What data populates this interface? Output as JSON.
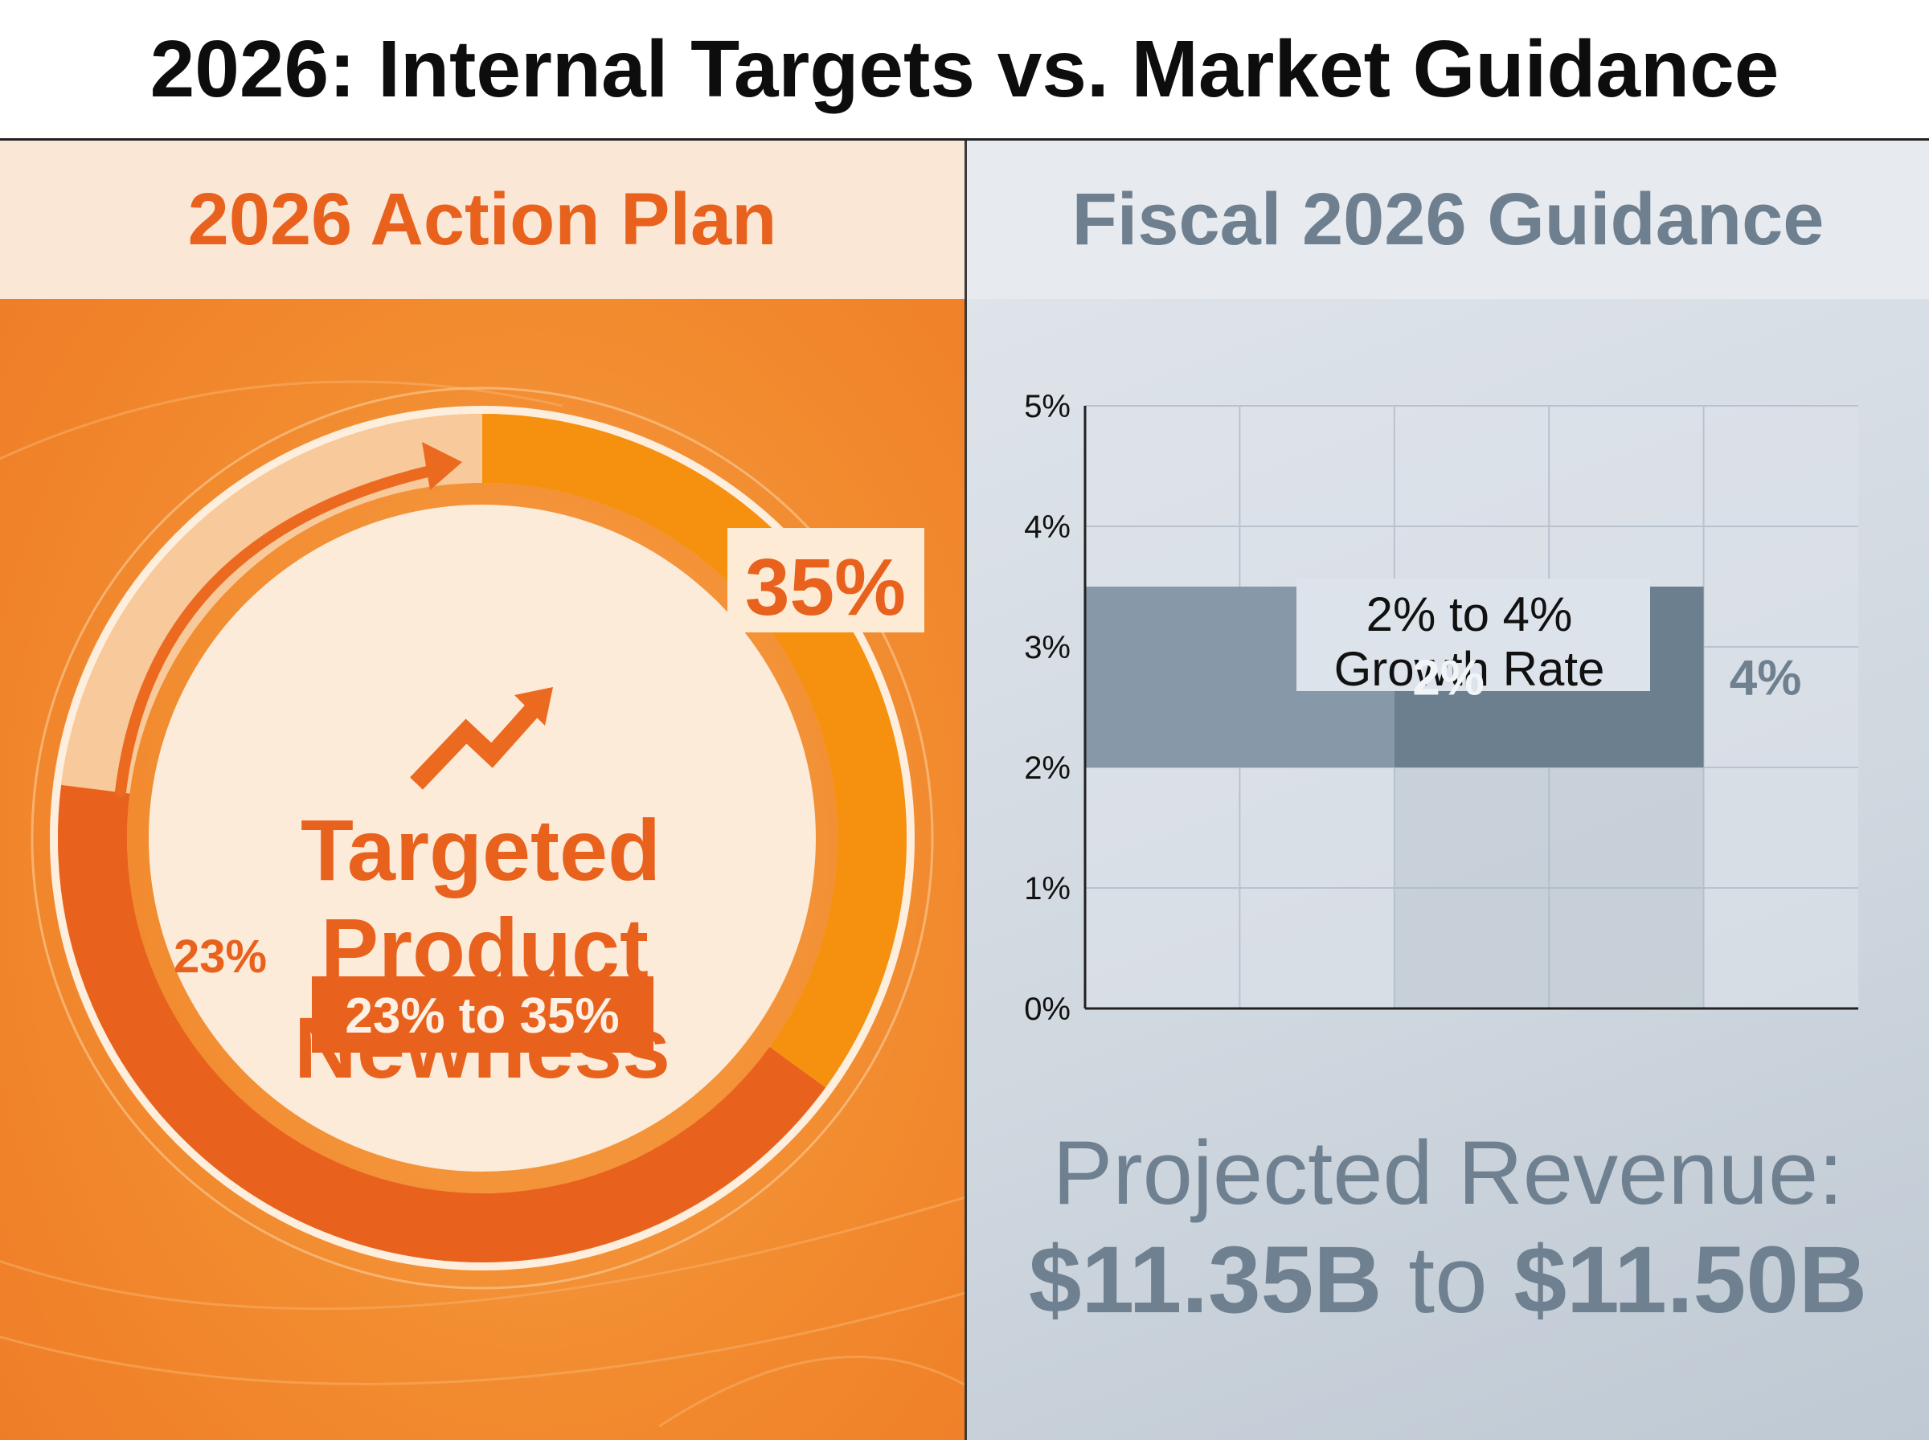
{
  "title": "2026: Internal Targets vs. Market Guidance",
  "left_panel": {
    "heading": "2026 Action Plan",
    "center_label_lines": [
      "Targeted",
      "Product",
      "Newness"
    ],
    "range_badge": "23% to 35%",
    "start_label": "23%",
    "end_label": "35%"
  },
  "right_panel": {
    "heading": "Fiscal 2026 Guidance",
    "annotation_lines": [
      "2% to 4%",
      "Growth Rate"
    ],
    "band_low_label": "2%",
    "band_high_label": "4%",
    "revenue_label": "Projected Revenue:",
    "revenue_low": "$11.35B",
    "revenue_to": "to",
    "revenue_high": "$11.50B"
  },
  "chart_data": [
    {
      "type": "pie",
      "subtype": "donut-progress",
      "values": [
        23,
        35
      ],
      "labels": [
        "23%",
        "35%"
      ],
      "title": "Targeted Product Newness",
      "note": "23% to 35%"
    },
    {
      "type": "bar",
      "subtype": "range-band",
      "ylim": [
        0,
        5
      ],
      "yticks": [
        "0%",
        "1%",
        "2%",
        "3%",
        "4%",
        "5%"
      ],
      "grid": true,
      "range": [
        2,
        4
      ],
      "title": "2% to 4% Growth Rate"
    }
  ],
  "colors": {
    "orange_dark": "#e8621e",
    "orange_mid": "#f6900f",
    "cream": "#fbe8d8",
    "slate": "#6e7f8f",
    "slate_dark": "#6b7d8c"
  }
}
